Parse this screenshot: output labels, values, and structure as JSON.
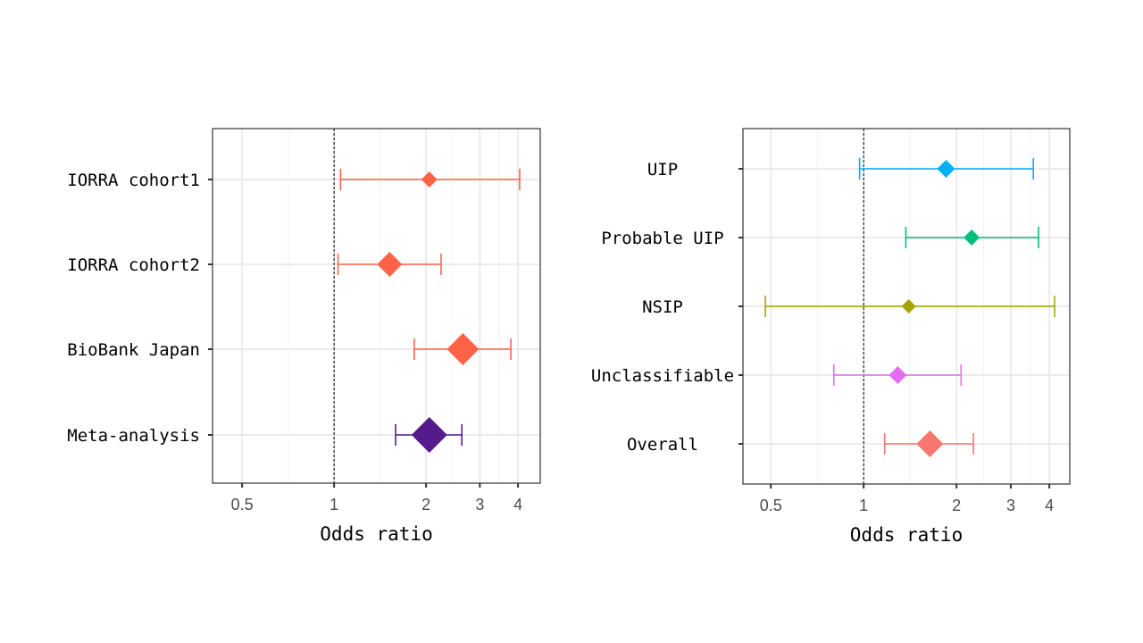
{
  "chart_data": [
    {
      "type": "forest",
      "xlabel": "Odds ratio",
      "xscale": "log",
      "xlim": [
        0.4,
        4.73
      ],
      "xticks": [
        0.5,
        1,
        2,
        3,
        4
      ],
      "xtick_labels": [
        "0.5",
        "1",
        "2",
        "3",
        "4"
      ],
      "reference_line": 1,
      "grid": true,
      "rows": [
        {
          "label": "IORRA cohort1",
          "or": 2.05,
          "lower": 1.05,
          "upper": 4.05,
          "color": "#FF6347",
          "weight": 0.45
        },
        {
          "label": "IORRA cohort2",
          "or": 1.52,
          "lower": 1.03,
          "upper": 2.24,
          "color": "#FF6347",
          "weight": 0.7
        },
        {
          "label": "BioBank Japan",
          "or": 2.64,
          "lower": 1.83,
          "upper": 3.79,
          "color": "#FF6347",
          "weight": 0.9
        },
        {
          "label": "Meta-analysis",
          "or": 2.05,
          "lower": 1.59,
          "upper": 2.62,
          "color": "#551A8B",
          "weight": 1.0
        }
      ]
    },
    {
      "type": "forest",
      "xlabel": "Odds ratio",
      "xscale": "log",
      "xlim": [
        0.406,
        4.66
      ],
      "xticks": [
        0.5,
        1,
        2,
        3,
        4
      ],
      "xtick_labels": [
        "0.5",
        "1",
        "2",
        "3",
        "4"
      ],
      "reference_line": 1,
      "grid": true,
      "rows": [
        {
          "label": "UIP",
          "or": 1.85,
          "lower": 0.97,
          "upper": 3.55,
          "color": "#00B0F6",
          "weight": 0.5
        },
        {
          "label": "Probable UIP",
          "or": 2.24,
          "lower": 1.37,
          "upper": 3.69,
          "color": "#00BF7D",
          "weight": 0.45
        },
        {
          "label": "NSIP",
          "or": 1.4,
          "lower": 0.48,
          "upper": 4.16,
          "color": "#A3A500",
          "weight": 0.4
        },
        {
          "label": "Unclassifiable",
          "or": 1.29,
          "lower": 0.8,
          "upper": 2.07,
          "color": "#E76BF3",
          "weight": 0.5
        },
        {
          "label": "Overall",
          "or": 1.64,
          "lower": 1.17,
          "upper": 2.27,
          "color": "#F8766D",
          "weight": 0.75
        }
      ]
    }
  ]
}
